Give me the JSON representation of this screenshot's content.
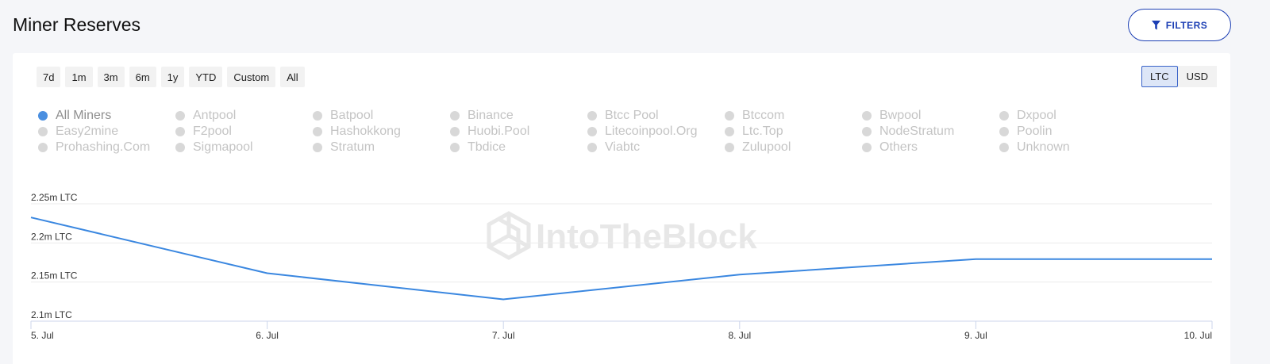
{
  "header": {
    "title": "Miner Reserves",
    "filters_label": "FILTERS"
  },
  "ranges": [
    "7d",
    "1m",
    "3m",
    "6m",
    "1y",
    "YTD",
    "Custom",
    "All"
  ],
  "units": [
    {
      "label": "LTC",
      "active": true
    },
    {
      "label": "USD",
      "active": false
    }
  ],
  "legend": [
    {
      "label": "All Miners",
      "active": true
    },
    {
      "label": "Antpool",
      "active": false
    },
    {
      "label": "Batpool",
      "active": false
    },
    {
      "label": "Binance",
      "active": false
    },
    {
      "label": "Btcc Pool",
      "active": false
    },
    {
      "label": "Btccom",
      "active": false
    },
    {
      "label": "Bwpool",
      "active": false
    },
    {
      "label": "Dxpool",
      "active": false
    },
    {
      "label": "Easy2mine",
      "active": false
    },
    {
      "label": "F2pool",
      "active": false
    },
    {
      "label": "Hashokkong",
      "active": false
    },
    {
      "label": "Huobi.Pool",
      "active": false
    },
    {
      "label": "Litecoinpool.Org",
      "active": false
    },
    {
      "label": "Ltc.Top",
      "active": false
    },
    {
      "label": "NodeStratum",
      "active": false
    },
    {
      "label": "Poolin",
      "active": false
    },
    {
      "label": "Prohashing.Com",
      "active": false
    },
    {
      "label": "Sigmapool",
      "active": false
    },
    {
      "label": "Stratum",
      "active": false
    },
    {
      "label": "Tbdice",
      "active": false
    },
    {
      "label": "Viabtc",
      "active": false
    },
    {
      "label": "Zulupool",
      "active": false
    },
    {
      "label": "Others",
      "active": false
    },
    {
      "label": "Unknown",
      "active": false
    }
  ],
  "watermark": "IntoTheBlock",
  "colors": {
    "line": "#3a87e0",
    "accent": "#1c3fb4"
  },
  "chart_data": {
    "type": "line",
    "x": [
      "5. Jul",
      "6. Jul",
      "7. Jul",
      "8. Jul",
      "9. Jul",
      "10. Jul"
    ],
    "series": [
      {
        "name": "All Miners",
        "values": [
          2.2326,
          2.1613,
          2.1279,
          2.1595,
          2.1793,
          2.1793
        ]
      }
    ],
    "y_ticks": [
      2.1,
      2.15,
      2.2,
      2.25
    ],
    "y_tick_labels": [
      "2.1m LTC",
      "2.15m LTC",
      "2.2m LTC",
      "2.25m LTC"
    ],
    "ylim": [
      2.1,
      2.25
    ],
    "grid": true,
    "legend_placement": "top"
  }
}
